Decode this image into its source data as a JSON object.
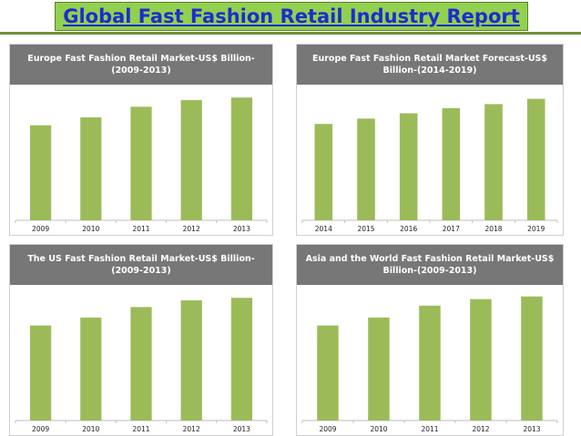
{
  "header": {
    "title": "Global Fast Fashion Retail Industry Report"
  },
  "colors": {
    "bar": "#9bbb59",
    "panel_header": "#777777",
    "title_bg": "#92d050",
    "title_text": "#1f2bd0"
  },
  "chart_data": [
    {
      "type": "bar",
      "title": "Europe Fast Fashion Retail  Market-US$ Billion-(2009-2013)",
      "categories": [
        "2009",
        "2010",
        "2011",
        "2012",
        "2013"
      ],
      "values": [
        72,
        78,
        86,
        91,
        93
      ],
      "ylim": [
        0,
        100
      ]
    },
    {
      "type": "bar",
      "title": "Europe Fast Fashion Retail  Market Forecast-US$ Billion-(2014-2019)",
      "categories": [
        "2014",
        "2015",
        "2016",
        "2017",
        "2018",
        "2019"
      ],
      "values": [
        73,
        77,
        81,
        85,
        88,
        92
      ],
      "ylim": [
        0,
        100
      ]
    },
    {
      "type": "bar",
      "title": "The US Fast Fashion Retail Market-US$ Billion-(2009-2013)",
      "categories": [
        "2009",
        "2010",
        "2011",
        "2012",
        "2013"
      ],
      "values": [
        72,
        78,
        86,
        91,
        93
      ],
      "ylim": [
        0,
        100
      ]
    },
    {
      "type": "bar",
      "title": "Asia and the World Fast Fashion Retail  Market-US$ Billion-(2009-2013)",
      "categories": [
        "2009",
        "2010",
        "2011",
        "2012",
        "2013"
      ],
      "values": [
        72,
        78,
        87,
        92,
        94
      ],
      "ylim": [
        0,
        100
      ]
    }
  ]
}
